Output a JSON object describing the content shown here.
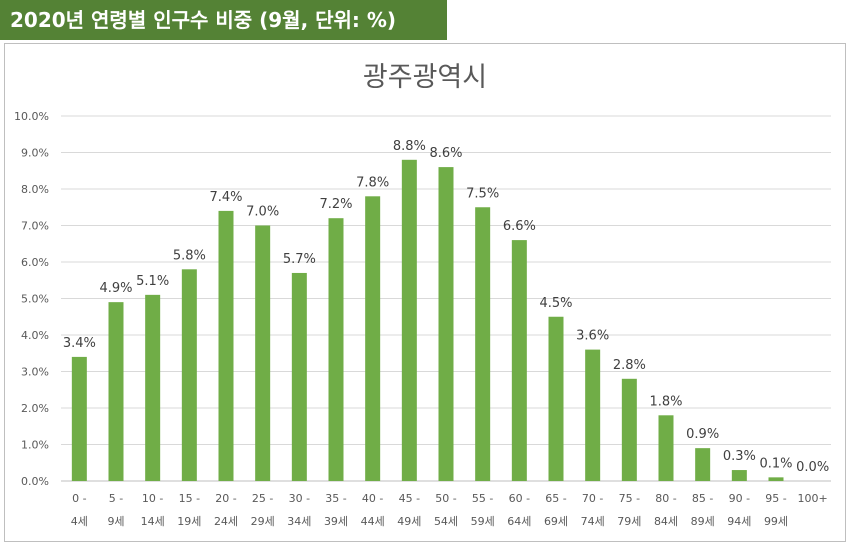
{
  "header": {
    "title": "2020년 연령별 인구수 비중 (9월, 단위: %)"
  },
  "colors": {
    "bar": "#70AD47",
    "header_bg": "#548235",
    "grid": "#D9D9D9"
  },
  "chart_data": {
    "type": "bar",
    "title": "광주광역시",
    "categories": [
      [
        "0 -",
        "4세"
      ],
      [
        "5 -",
        "9세"
      ],
      [
        "10 -",
        "14세"
      ],
      [
        "15 -",
        "19세"
      ],
      [
        "20 -",
        "24세"
      ],
      [
        "25 -",
        "29세"
      ],
      [
        "30 -",
        "34세"
      ],
      [
        "35 -",
        "39세"
      ],
      [
        "40 -",
        "44세"
      ],
      [
        "45 -",
        "49세"
      ],
      [
        "50 -",
        "54세"
      ],
      [
        "55 -",
        "59세"
      ],
      [
        "60 -",
        "64세"
      ],
      [
        "65 -",
        "69세"
      ],
      [
        "70 -",
        "74세"
      ],
      [
        "75 -",
        "79세"
      ],
      [
        "80 -",
        "84세"
      ],
      [
        "85 -",
        "89세"
      ],
      [
        "90 -",
        "94세"
      ],
      [
        "95 -",
        "99세"
      ],
      [
        "100+",
        ""
      ]
    ],
    "values": [
      3.4,
      4.9,
      5.1,
      5.8,
      7.4,
      7.0,
      5.7,
      7.2,
      7.8,
      8.8,
      8.6,
      7.5,
      6.6,
      4.5,
      3.6,
      2.8,
      1.8,
      0.9,
      0.3,
      0.1,
      0.0
    ],
    "value_labels": [
      "3.4%",
      "4.9%",
      "5.1%",
      "5.8%",
      "7.4%",
      "7.0%",
      "5.7%",
      "7.2%",
      "7.8%",
      "8.8%",
      "8.6%",
      "7.5%",
      "6.6%",
      "4.5%",
      "3.6%",
      "2.8%",
      "1.8%",
      "0.9%",
      "0.3%",
      "0.1%",
      "0.0%"
    ],
    "y_ticks": [
      "0.0%",
      "1.0%",
      "2.0%",
      "3.0%",
      "4.0%",
      "5.0%",
      "6.0%",
      "7.0%",
      "8.0%",
      "9.0%",
      "10.0%"
    ],
    "ylim": [
      0,
      10
    ],
    "grid": true
  }
}
